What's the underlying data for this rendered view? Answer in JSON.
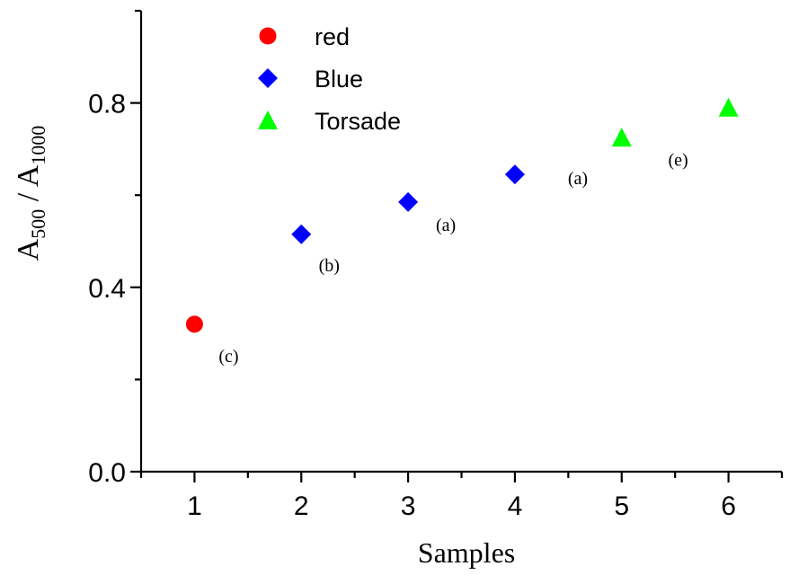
{
  "chart_data": {
    "type": "scatter",
    "xlabel": "Samples",
    "ylabel": {
      "base1": "A",
      "sub1": "500",
      "sep": " / ",
      "base2": "A",
      "sub2": "1000"
    },
    "xlim": [
      0.5,
      6.5
    ],
    "ylim": [
      0,
      1.0
    ],
    "xticks": [
      1,
      2,
      3,
      4,
      5,
      6
    ],
    "xtick_labels": [
      "1",
      "2",
      "3",
      "4",
      "5",
      "6"
    ],
    "yticks": [
      0.0,
      0.4,
      0.8
    ],
    "ytick_labels": [
      "0.0",
      "0.4",
      "0.8"
    ],
    "grid": false,
    "legend_position": "top-left",
    "series": [
      {
        "name": "red",
        "marker": "circle",
        "color": "#ff0000",
        "points": [
          {
            "x": 1,
            "y": 0.32,
            "label": "(c)"
          }
        ]
      },
      {
        "name": "Blue",
        "marker": "diamond",
        "color": "#0000ff",
        "points": [
          {
            "x": 2,
            "y": 0.515,
            "label": "(b)"
          },
          {
            "x": 3,
            "y": 0.585,
            "label": "(a)"
          },
          {
            "x": 4,
            "y": 0.645,
            "label": "(a)"
          }
        ]
      },
      {
        "name": "Torsade",
        "marker": "triangle",
        "color": "#00ff00",
        "points": [
          {
            "x": 5,
            "y": 0.725,
            "label": ""
          },
          {
            "x": 6,
            "y": 0.79,
            "label": "(e)"
          }
        ]
      }
    ]
  }
}
